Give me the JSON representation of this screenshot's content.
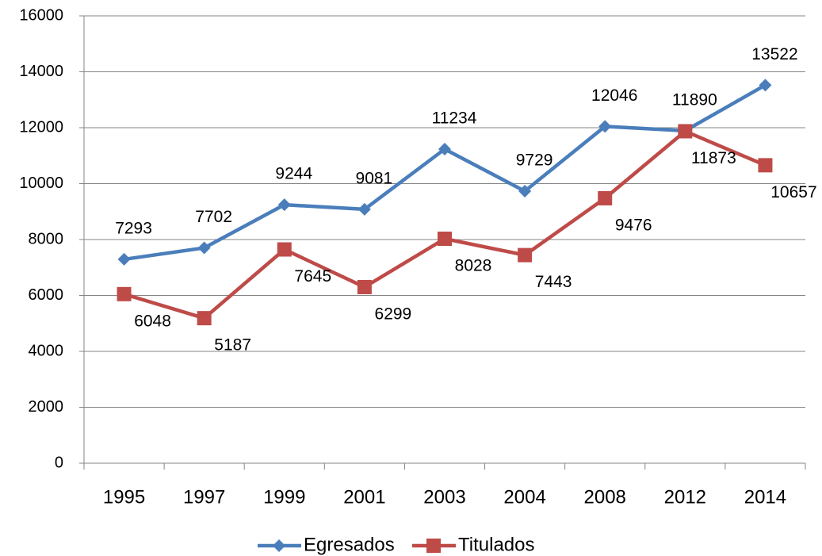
{
  "chart_data": {
    "type": "line",
    "categories": [
      "1995",
      "1997",
      "1999",
      "2001",
      "2003",
      "2004",
      "2008",
      "2012",
      "2014"
    ],
    "series": [
      {
        "name": "Egresados",
        "color": "#4a7ebb",
        "marker": "diamond",
        "values": [
          7293,
          7702,
          9244,
          9081,
          11234,
          9729,
          12046,
          11890,
          13522
        ]
      },
      {
        "name": "Titulados",
        "color": "#be4b48",
        "marker": "square",
        "values": [
          6048,
          5187,
          7645,
          6299,
          8028,
          7443,
          9476,
          11873,
          10657
        ]
      }
    ],
    "ylim": [
      0,
      16000
    ],
    "yticks": [
      0,
      2000,
      4000,
      6000,
      8000,
      10000,
      12000,
      14000,
      16000
    ],
    "grid": true,
    "legend": "bottom"
  }
}
